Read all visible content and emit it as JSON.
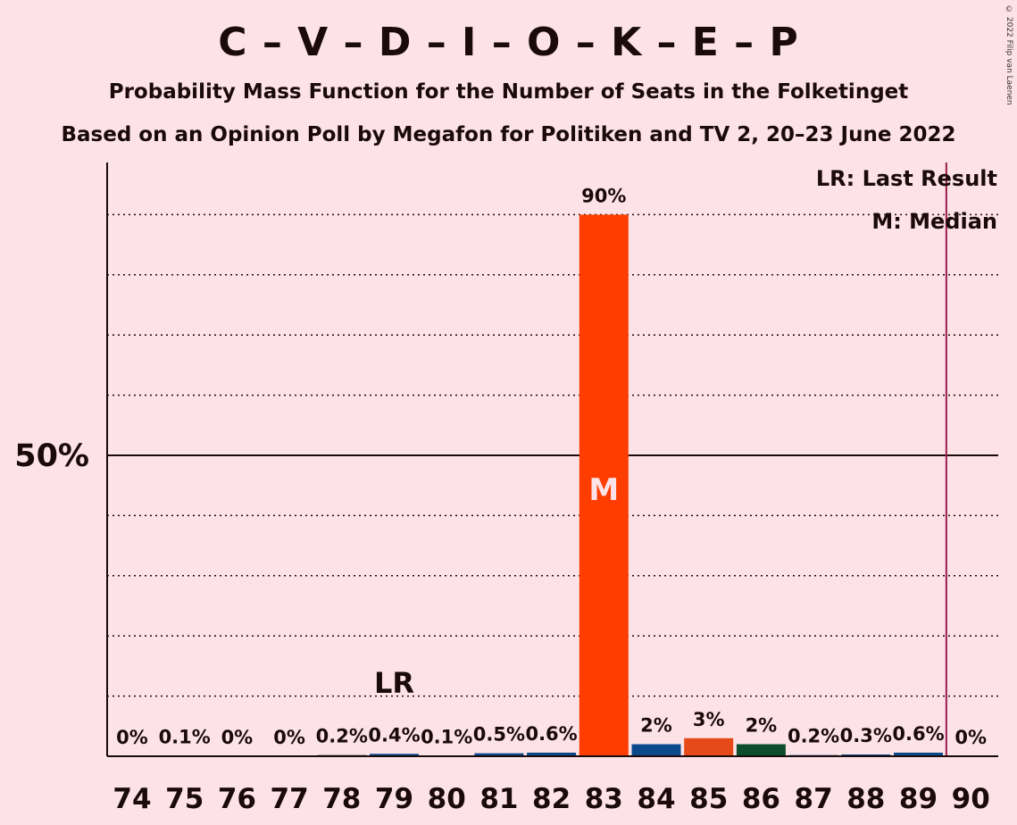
{
  "title": "C – V – D – I – O – K – E – P",
  "subtitle": "Probability Mass Function for the Number of Seats in the Folketinget",
  "subtitle2": "Based on an Opinion Poll by Megafon for Politiken and TV 2, 20–23 June 2022",
  "copyright": "© 2022 Filip van Laenen",
  "legend": {
    "last_result": "LR: Last Result",
    "median": "M: Median"
  },
  "colors": {
    "background": "#FDE3E8",
    "red": "#FF3D00",
    "blue": "#0A4A8C",
    "orange": "#E64A19",
    "green": "#0B4D2C",
    "majority_line": "#9B1B4B"
  },
  "chart_data": {
    "type": "bar",
    "categories": [
      "74",
      "75",
      "76",
      "77",
      "78",
      "79",
      "80",
      "81",
      "82",
      "83",
      "84",
      "85",
      "86",
      "87",
      "88",
      "89",
      "90"
    ],
    "values": [
      0,
      0.1,
      0,
      0,
      0.2,
      0.4,
      0.1,
      0.5,
      0.6,
      90,
      2,
      3,
      2,
      0.2,
      0.3,
      0.6,
      0
    ],
    "value_labels": [
      "0%",
      "0.1%",
      "0%",
      "0%",
      "0.2%",
      "0.4%",
      "0.1%",
      "0.5%",
      "0.6%",
      "90%",
      "2%",
      "3%",
      "2%",
      "0.2%",
      "0.3%",
      "0.6%",
      "0%"
    ],
    "bar_colors": [
      "#FF3D00",
      "#0A4A8C",
      "#FF3D00",
      "#0A4A8C",
      "#0B4D2C",
      "#0A4A8C",
      "#0A4A8C",
      "#0A4A8C",
      "#0A4A8C",
      "#FF3D00",
      "#0A4A8C",
      "#E64A19",
      "#0B4D2C",
      "#0A4A8C",
      "#0A4A8C",
      "#0A4A8C",
      "#FF3D00"
    ],
    "ylim": [
      0,
      98
    ],
    "ytick_label": "50%",
    "ytick_value": 50,
    "gridlines": [
      10,
      20,
      30,
      40,
      60,
      70,
      80,
      90
    ],
    "last_result_seat": "79",
    "last_result_label": "LR",
    "median_seat": "83",
    "median_label": "M",
    "majority_after_seat": "89"
  }
}
